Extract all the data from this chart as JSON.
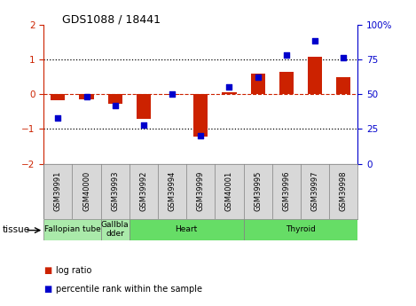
{
  "title": "GDS1088 / 18441",
  "samples": [
    "GSM39991",
    "GSM40000",
    "GSM39993",
    "GSM39992",
    "GSM39994",
    "GSM39999",
    "GSM40001",
    "GSM39995",
    "GSM39996",
    "GSM39997",
    "GSM39998"
  ],
  "log_ratio": [
    -0.18,
    -0.15,
    -0.28,
    -0.72,
    -0.02,
    -1.22,
    0.05,
    0.58,
    0.65,
    1.08,
    0.48
  ],
  "percentile_rank": [
    33,
    48,
    42,
    28,
    50,
    20,
    55,
    62,
    78,
    88,
    76
  ],
  "tissues": [
    {
      "label": "Fallopian tube",
      "start": 0,
      "end": 2,
      "color": "#aaeaaa"
    },
    {
      "label": "Gallbla\ndder",
      "start": 2,
      "end": 3,
      "color": "#aaeaaa"
    },
    {
      "label": "Heart",
      "start": 3,
      "end": 7,
      "color": "#66DD66"
    },
    {
      "label": "Thyroid",
      "start": 7,
      "end": 11,
      "color": "#66DD66"
    }
  ],
  "bar_color": "#CC2200",
  "dot_color": "#0000CC",
  "ylim_left": [
    -2.0,
    2.0
  ],
  "ylim_right": [
    0,
    100
  ],
  "yticks_left": [
    -2,
    -1,
    0,
    1,
    2
  ],
  "yticks_right": [
    0,
    25,
    50,
    75,
    100
  ],
  "ytick_labels_right": [
    "0",
    "25",
    "50",
    "75",
    "100%"
  ],
  "bg_color": "#FFFFFF",
  "plot_bg": "#FFFFFF",
  "legend_items": [
    {
      "color": "#CC2200",
      "label": "log ratio"
    },
    {
      "color": "#0000CC",
      "label": "percentile rank within the sample"
    }
  ]
}
